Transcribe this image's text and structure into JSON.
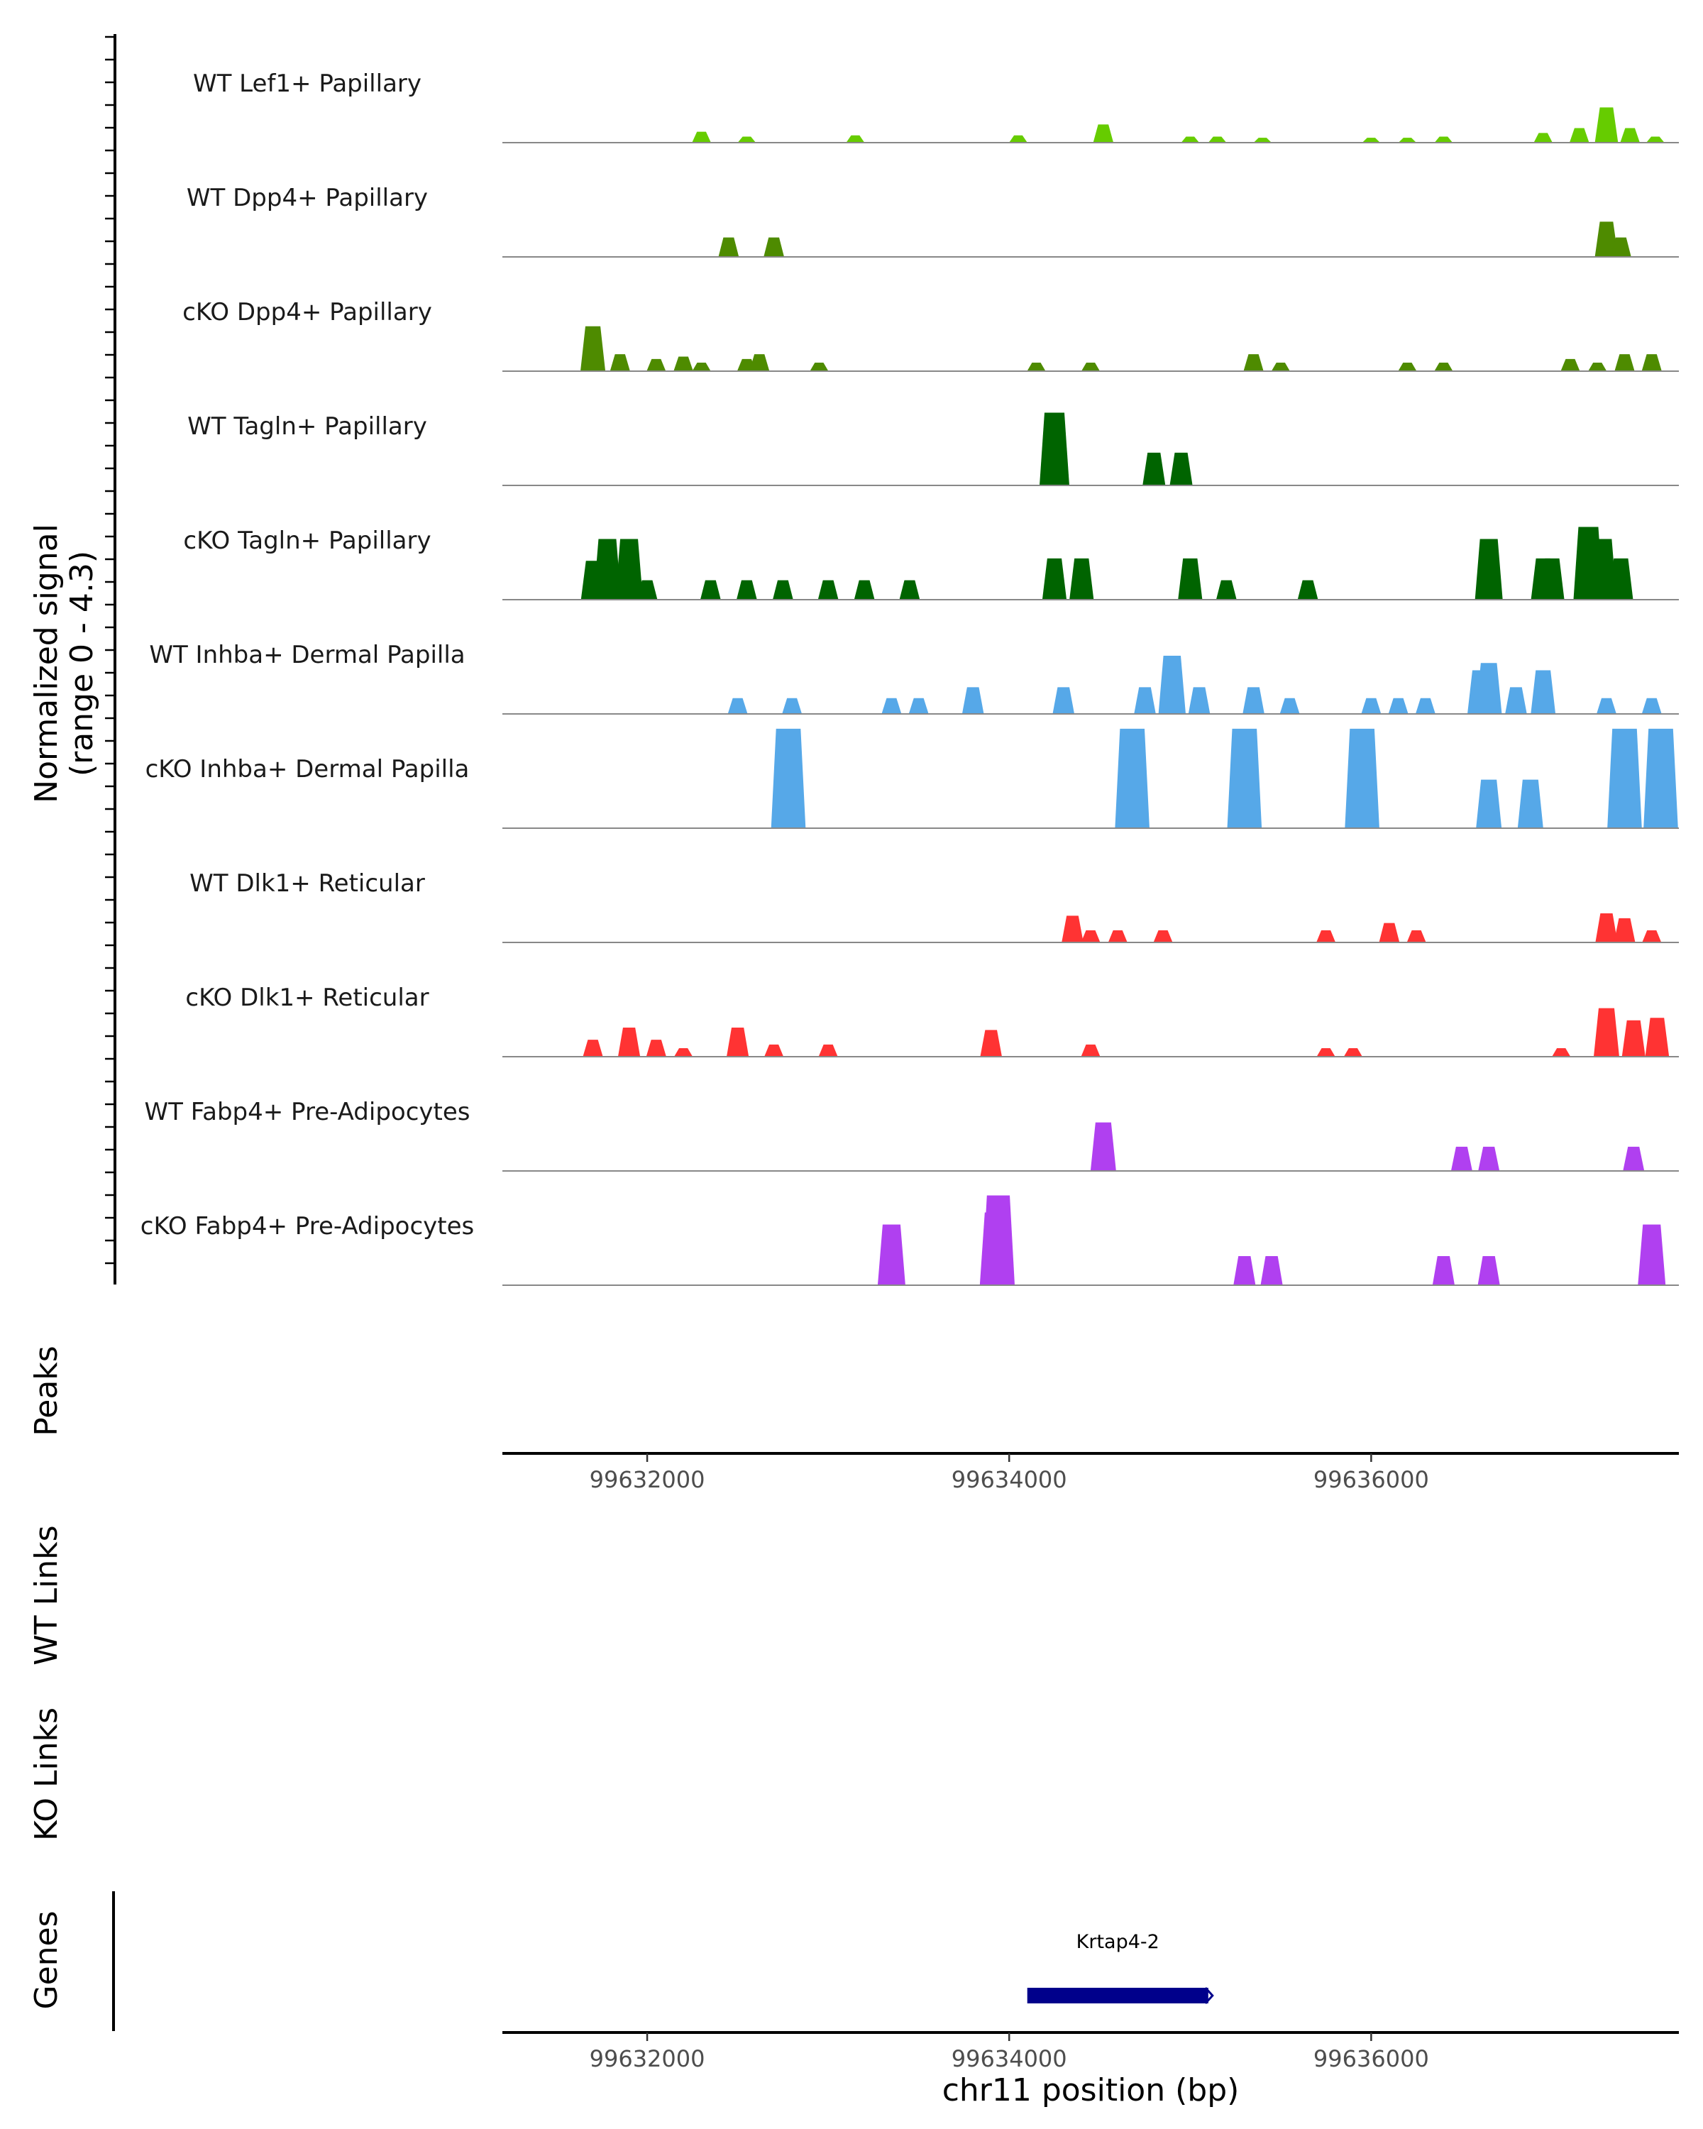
{
  "chart_data": {
    "type": "area",
    "title": "",
    "chromosome": "chr11",
    "xlabel": "chr11 position (bp)",
    "ylabel_line1": "Normalized signal",
    "ylabel_line2": "(range 0 - 4.3)",
    "yrange": [
      0,
      4.3
    ],
    "xlim": [
      99631200,
      99637700
    ],
    "xticks": [
      99632000,
      99634000,
      99636000
    ],
    "xtick_labels": [
      "99632000",
      "99634000",
      "99636000"
    ],
    "panel_labels": {
      "peaks": "Peaks",
      "wt_links": "WT Links",
      "ko_links": "KO Links",
      "genes": "Genes"
    },
    "series": [
      {
        "name": "WT Lef1+ Papillary",
        "color": "#66CC00",
        "peaks": [
          [
            99632300,
            0.45
          ],
          [
            99632550,
            0.25
          ],
          [
            99633150,
            0.3
          ],
          [
            99634050,
            0.3
          ],
          [
            99634520,
            0.75
          ],
          [
            99635000,
            0.25
          ],
          [
            99635150,
            0.25
          ],
          [
            99635400,
            0.2
          ],
          [
            99636000,
            0.2
          ],
          [
            99636200,
            0.2
          ],
          [
            99636400,
            0.25
          ],
          [
            99636950,
            0.4
          ],
          [
            99637150,
            0.6
          ],
          [
            99637300,
            1.45
          ],
          [
            99637430,
            0.6
          ],
          [
            99637570,
            0.25
          ]
        ]
      },
      {
        "name": "WT Dpp4+ Papillary",
        "color": "#4E8B00",
        "peaks": [
          [
            99632450,
            0.8
          ],
          [
            99632700,
            0.8
          ],
          [
            99637300,
            1.45
          ],
          [
            99637380,
            0.8
          ]
        ]
      },
      {
        "name": "cKO Dpp4+ Papillary",
        "color": "#4E8B00",
        "peaks": [
          [
            99631700,
            1.85
          ],
          [
            99631850,
            0.7
          ],
          [
            99632050,
            0.5
          ],
          [
            99632200,
            0.6
          ],
          [
            99632300,
            0.35
          ],
          [
            99632550,
            0.5
          ],
          [
            99632620,
            0.7
          ],
          [
            99632950,
            0.35
          ],
          [
            99634150,
            0.35
          ],
          [
            99634450,
            0.35
          ],
          [
            99635350,
            0.7
          ],
          [
            99635500,
            0.35
          ],
          [
            99636200,
            0.35
          ],
          [
            99636400,
            0.35
          ],
          [
            99637100,
            0.5
          ],
          [
            99637250,
            0.35
          ],
          [
            99637400,
            0.7
          ],
          [
            99637550,
            0.7
          ]
        ]
      },
      {
        "name": "WT Tagln+ Papillary",
        "color": "#006400",
        "peaks": [
          [
            99634250,
            1.35
          ],
          [
            99634250,
            3.0
          ],
          [
            99634800,
            1.35
          ],
          [
            99634950,
            1.35
          ]
        ]
      },
      {
        "name": "cKO Tagln+ Papillary",
        "color": "#006400",
        "peaks": [
          [
            99631700,
            1.6
          ],
          [
            99631780,
            2.5
          ],
          [
            99631900,
            2.5
          ],
          [
            99632000,
            0.8
          ],
          [
            99632350,
            0.8
          ],
          [
            99632550,
            0.8
          ],
          [
            99632750,
            0.8
          ],
          [
            99633000,
            0.8
          ],
          [
            99633200,
            0.8
          ],
          [
            99633450,
            0.8
          ],
          [
            99634250,
            1.7
          ],
          [
            99634400,
            1.7
          ],
          [
            99635000,
            1.7
          ],
          [
            99635200,
            0.8
          ],
          [
            99635650,
            0.8
          ],
          [
            99636650,
            2.5
          ],
          [
            99636950,
            1.7
          ],
          [
            99637000,
            1.7
          ],
          [
            99637200,
            3.0
          ],
          [
            99637280,
            2.5
          ],
          [
            99637380,
            1.7
          ]
        ]
      },
      {
        "name": "WT Inhba+ Dermal Papilla",
        "color": "#56A8E8",
        "peaks": [
          [
            99632500,
            0.65
          ],
          [
            99632800,
            0.65
          ],
          [
            99633350,
            0.65
          ],
          [
            99633500,
            0.65
          ],
          [
            99633800,
            1.1
          ],
          [
            99634300,
            1.1
          ],
          [
            99634300,
            0.65
          ],
          [
            99634750,
            1.1
          ],
          [
            99634900,
            2.4
          ],
          [
            99635050,
            1.1
          ],
          [
            99635350,
            1.1
          ],
          [
            99635550,
            0.65
          ],
          [
            99636000,
            0.65
          ],
          [
            99636150,
            0.65
          ],
          [
            99636300,
            0.65
          ],
          [
            99636600,
            1.8
          ],
          [
            99636650,
            2.1
          ],
          [
            99636800,
            1.1
          ],
          [
            99636950,
            1.8
          ],
          [
            99637300,
            0.65
          ],
          [
            99637550,
            0.65
          ]
        ]
      },
      {
        "name": "cKO Inhba+ Dermal Papilla",
        "color": "#56A8E8",
        "peaks": [
          [
            99632780,
            4.1
          ],
          [
            99634680,
            4.1
          ],
          [
            99635300,
            4.1
          ],
          [
            99635950,
            4.1
          ],
          [
            99636650,
            2.0
          ],
          [
            99636880,
            2.0
          ],
          [
            99637400,
            4.1
          ],
          [
            99637600,
            4.1
          ]
        ]
      },
      {
        "name": "WT Dlk1+ Reticular",
        "color": "#FF3333",
        "peaks": [
          [
            99634350,
            1.1
          ],
          [
            99634450,
            0.5
          ],
          [
            99634600,
            0.5
          ],
          [
            99634850,
            0.5
          ],
          [
            99635750,
            0.5
          ],
          [
            99636100,
            0.8
          ],
          [
            99636250,
            0.5
          ],
          [
            99637300,
            1.2
          ],
          [
            99637400,
            1.0
          ],
          [
            99637550,
            0.5
          ]
        ]
      },
      {
        "name": "cKO Dlk1+ Reticular",
        "color": "#FF3333",
        "peaks": [
          [
            99631700,
            0.7
          ],
          [
            99631900,
            1.2
          ],
          [
            99632050,
            0.7
          ],
          [
            99632200,
            0.35
          ],
          [
            99632500,
            1.2
          ],
          [
            99632700,
            0.5
          ],
          [
            99633000,
            0.5
          ],
          [
            99633900,
            1.1
          ],
          [
            99634450,
            0.5
          ],
          [
            99635750,
            0.35
          ],
          [
            99635900,
            0.35
          ],
          [
            99637050,
            0.35
          ],
          [
            99637300,
            2.0
          ],
          [
            99637450,
            1.5
          ],
          [
            99637580,
            1.6
          ]
        ]
      },
      {
        "name": "WT Fabp4+ Pre-Adipocytes",
        "color": "#B040F0",
        "peaks": [
          [
            99634520,
            2.0
          ],
          [
            99636500,
            1.0
          ],
          [
            99636650,
            1.0
          ],
          [
            99637450,
            1.0
          ]
        ]
      },
      {
        "name": "cKO Fabp4+ Pre-Adipocytes",
        "color": "#B040F0",
        "peaks": [
          [
            99633350,
            2.5
          ],
          [
            99633920,
            3.0
          ],
          [
            99633940,
            3.7
          ],
          [
            99635300,
            1.2
          ],
          [
            99635450,
            1.2
          ],
          [
            99636400,
            1.2
          ],
          [
            99636650,
            1.2
          ],
          [
            99637550,
            2.5
          ]
        ]
      }
    ],
    "genes": [
      {
        "name": "Krtap4-2",
        "start": 99634100,
        "end": 99635100,
        "strand": "+",
        "color": "#00008B"
      }
    ]
  }
}
